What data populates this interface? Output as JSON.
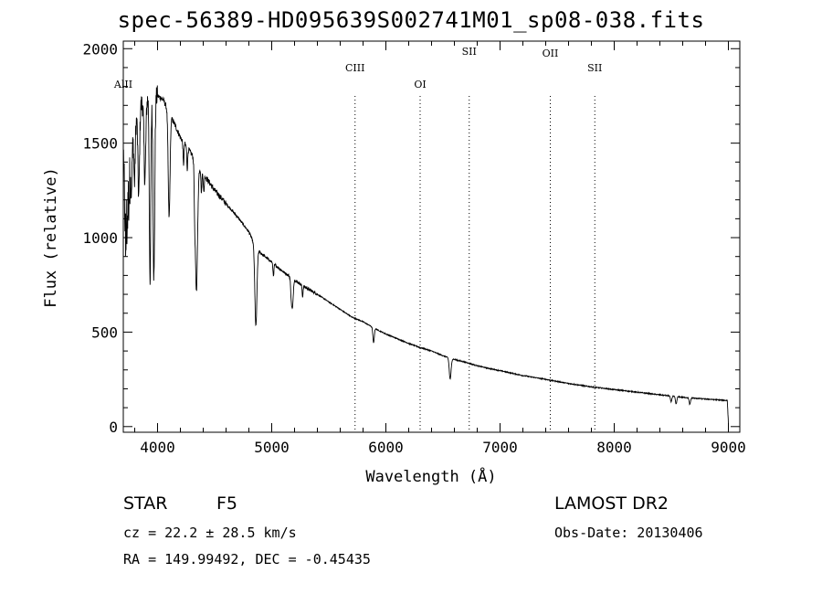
{
  "title": "spec-56389-HD095639S002741M01_sp08-038.fits",
  "info": {
    "class_label": "STAR",
    "subclass_label": "F5",
    "survey": "LAMOST DR2",
    "cz": "cz = 22.2 ± 28.5 km/s",
    "obs_date": "Obs-Date: 20130406",
    "radec": "RA = 149.99492, DEC =  -0.45435"
  },
  "chart_data": {
    "type": "line",
    "xlabel": "Wavelength (Å)",
    "ylabel": "Flux (relative)",
    "xlim": [
      3700,
      9100
    ],
    "ylim": [
      -30,
      2040
    ],
    "xticks": [
      4000,
      5000,
      6000,
      7000,
      8000,
      9000
    ],
    "yticks": [
      0,
      500,
      1000,
      1500,
      2000
    ],
    "series": [
      {
        "continuum": [
          [
            3700,
            1300
          ],
          [
            3760,
            1450
          ],
          [
            3800,
            1600
          ],
          [
            3850,
            1700
          ],
          [
            3900,
            1740
          ],
          [
            3950,
            1720
          ],
          [
            4000,
            1750
          ],
          [
            4050,
            1730
          ],
          [
            4100,
            1660
          ],
          [
            4150,
            1600
          ],
          [
            4200,
            1530
          ],
          [
            4300,
            1440
          ],
          [
            4400,
            1340
          ],
          [
            4500,
            1250
          ],
          [
            4600,
            1180
          ],
          [
            4700,
            1110
          ],
          [
            4800,
            1030
          ],
          [
            4850,
            960
          ],
          [
            4900,
            920
          ],
          [
            5000,
            870
          ],
          [
            5100,
            820
          ],
          [
            5200,
            775
          ],
          [
            5300,
            735
          ],
          [
            5400,
            700
          ],
          [
            5500,
            660
          ],
          [
            5600,
            620
          ],
          [
            5700,
            580
          ],
          [
            5800,
            555
          ],
          [
            5900,
            520
          ],
          [
            6000,
            490
          ],
          [
            6100,
            465
          ],
          [
            6200,
            440
          ],
          [
            6300,
            418
          ],
          [
            6400,
            400
          ],
          [
            6500,
            375
          ],
          [
            6600,
            355
          ],
          [
            6700,
            340
          ],
          [
            6800,
            322
          ],
          [
            6900,
            308
          ],
          [
            7000,
            296
          ],
          [
            7200,
            270
          ],
          [
            7400,
            250
          ],
          [
            7600,
            228
          ],
          [
            7800,
            210
          ],
          [
            8000,
            196
          ],
          [
            8200,
            182
          ],
          [
            8400,
            168
          ],
          [
            8600,
            155
          ],
          [
            8800,
            146
          ],
          [
            8990,
            138
          ],
          [
            9000,
            20
          ]
        ],
        "absorptions": [
          [
            3720,
            380,
            6
          ],
          [
            3735,
            300,
            6
          ],
          [
            3750,
            200,
            6
          ],
          [
            3770,
            250,
            6
          ],
          [
            3798,
            300,
            6
          ],
          [
            3835,
            450,
            7
          ],
          [
            3889,
            420,
            8
          ],
          [
            3934,
            1000,
            6
          ],
          [
            3968,
            950,
            7
          ],
          [
            4101,
            550,
            8
          ],
          [
            4227,
            120,
            4
          ],
          [
            4260,
            110,
            4
          ],
          [
            4325,
            150,
            4
          ],
          [
            4340,
            680,
            10
          ],
          [
            4384,
            120,
            4
          ],
          [
            4405,
            100,
            4
          ],
          [
            4861,
            420,
            9
          ],
          [
            5015,
            70,
            4
          ],
          [
            5172,
            110,
            6
          ],
          [
            5183,
            130,
            6
          ],
          [
            5270,
            60,
            4
          ],
          [
            5892,
            80,
            6
          ],
          [
            6563,
            110,
            8
          ],
          [
            8498,
            30,
            6
          ],
          [
            8542,
            40,
            6
          ],
          [
            8662,
            35,
            6
          ]
        ]
      }
    ],
    "line_markers": [
      {
        "label": "AlII",
        "wavelength": 3700
      },
      {
        "label": "CIII",
        "wavelength": 5730
      },
      {
        "label": "OI",
        "wavelength": 6300
      },
      {
        "label": "SII",
        "wavelength": 6730
      },
      {
        "label": "OII",
        "wavelength": 7440
      },
      {
        "label": "SII",
        "wavelength": 7830
      }
    ]
  }
}
